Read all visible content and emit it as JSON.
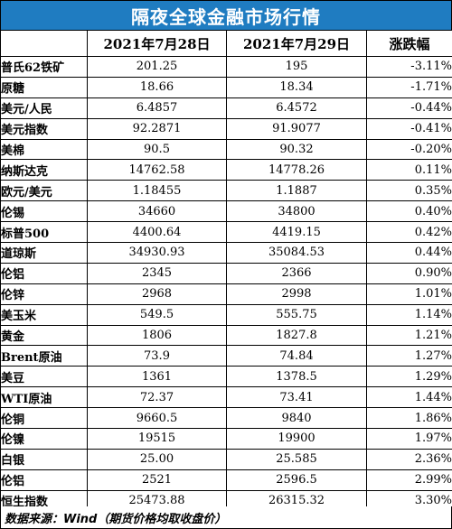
{
  "title": "隔夜全球金融市场行情",
  "headers": {
    "name": "",
    "date1": "2021年7月28日",
    "date2": "2021年7月29日",
    "change": "涨跌幅"
  },
  "rows": [
    {
      "name": "普氏62铁矿",
      "v1": "201.25",
      "v2": "195",
      "chg": "-3.11%"
    },
    {
      "name": "原糖",
      "v1": "18.66",
      "v2": "18.34",
      "chg": "-1.71%"
    },
    {
      "name": "美元/人民",
      "v1": "6.4857",
      "v2": "6.4572",
      "chg": "-0.44%"
    },
    {
      "name": "美元指数",
      "v1": "92.2871",
      "v2": "91.9077",
      "chg": "-0.41%"
    },
    {
      "name": "美棉",
      "v1": "90.5",
      "v2": "90.32",
      "chg": "-0.20%"
    },
    {
      "name": "纳斯达克",
      "v1": "14762.58",
      "v2": "14778.26",
      "chg": "0.11%"
    },
    {
      "name": "欧元/美元",
      "v1": "1.18455",
      "v2": "1.1887",
      "chg": "0.35%"
    },
    {
      "name": "伦锡",
      "v1": "34660",
      "v2": "34800",
      "chg": "0.40%"
    },
    {
      "name": "标普500",
      "v1": "4400.64",
      "v2": "4419.15",
      "chg": "0.42%"
    },
    {
      "name": "道琼斯",
      "v1": "34930.93",
      "v2": "35084.53",
      "chg": "0.44%"
    },
    {
      "name": "伦铝",
      "v1": "2345",
      "v2": "2366",
      "chg": "0.90%"
    },
    {
      "name": "伦锌",
      "v1": "2968",
      "v2": "2998",
      "chg": "1.01%"
    },
    {
      "name": "美玉米",
      "v1": "549.5",
      "v2": "555.75",
      "chg": "1.14%"
    },
    {
      "name": "黄金",
      "v1": "1806",
      "v2": "1827.8",
      "chg": "1.21%"
    },
    {
      "name": "Brent原油",
      "v1": "73.9",
      "v2": "74.84",
      "chg": "1.27%"
    },
    {
      "name": "美豆",
      "v1": "1361",
      "v2": "1378.5",
      "chg": "1.29%"
    },
    {
      "name": "WTI原油",
      "v1": "72.37",
      "v2": "73.41",
      "chg": "1.44%"
    },
    {
      "name": "伦铜",
      "v1": "9660.5",
      "v2": "9840",
      "chg": "1.86%"
    },
    {
      "name": "伦镍",
      "v1": "19515",
      "v2": "19900",
      "chg": "1.97%"
    },
    {
      "name": "白银",
      "v1": "25.00",
      "v2": "25.585",
      "chg": "2.36%"
    },
    {
      "name": "伦铝",
      "v1": "2521",
      "v2": "2596.5",
      "chg": "2.99%"
    },
    {
      "name": "恒生指数",
      "v1": "25473.88",
      "v2": "26315.32",
      "chg": "3.30%"
    }
  ],
  "source": "数据来源：Wind（期货价格均取收盘价）",
  "colors": {
    "title_background": "#1f7cc1",
    "title_text": "#ffffff"
  }
}
